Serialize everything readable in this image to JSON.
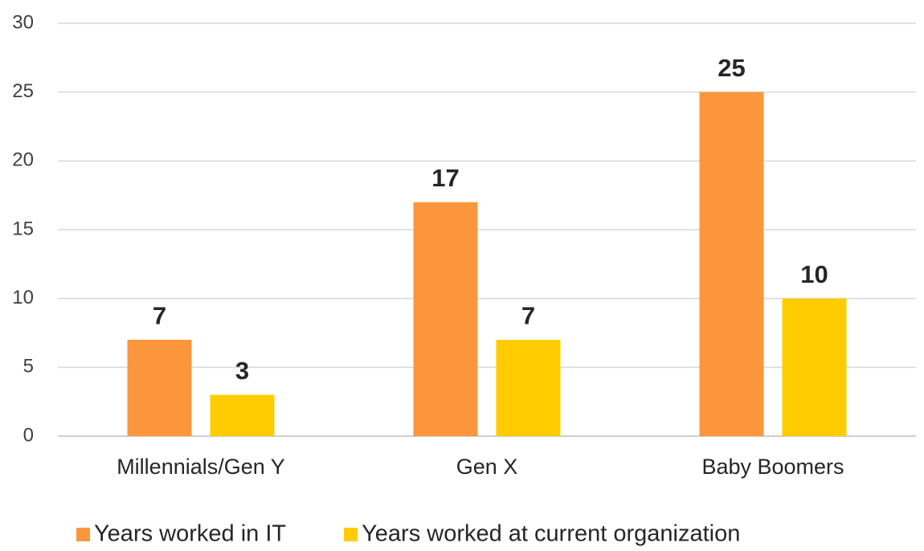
{
  "chart_data": {
    "type": "bar",
    "categories": [
      "Millennials/Gen Y",
      "Gen X",
      "Baby Boomers"
    ],
    "series": [
      {
        "name": "Years worked in IT",
        "color": "#fb963d",
        "values": [
          7,
          17,
          25
        ]
      },
      {
        "name": "Years worked at current organization",
        "color": "#ffcc00",
        "values": [
          3,
          7,
          10
        ]
      }
    ],
    "ylim": [
      0,
      30
    ],
    "yticks": [
      0,
      5,
      10,
      15,
      20,
      25,
      30
    ],
    "grid": true,
    "legend": "bottom"
  }
}
